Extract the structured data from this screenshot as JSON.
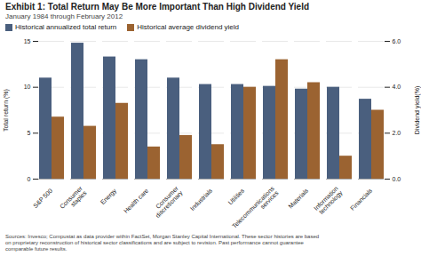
{
  "chart_data": {
    "type": "bar",
    "title": "Exhibit 1: Total Return May Be More Important Than High Dividend Yield",
    "subtitle": "January 1984 through February 2012",
    "categories": [
      "S&P 500",
      "Consumer\nstaples",
      "Energy",
      "Health care",
      "Consumer\ndiscretionary",
      "Industrials",
      "Utilities",
      "Telecommunications\nservices",
      "Materials",
      "Information\ntechnology",
      "Financials"
    ],
    "series": [
      {
        "name": "Historical annualized total return",
        "color": "#4a5f7e",
        "values": [
          11.0,
          14.8,
          13.3,
          13.0,
          11.0,
          10.3,
          10.3,
          10.1,
          9.8,
          10.0,
          8.7
        ]
      },
      {
        "name": "Historical average dividend yield",
        "color": "#9b6331",
        "values": [
          2.7,
          2.3,
          3.3,
          1.4,
          1.9,
          1.5,
          4.0,
          5.2,
          4.2,
          1.0,
          3.0
        ],
        "axis": "y2"
      }
    ],
    "ylabel": "Total return (%)",
    "y2label": "Dividend yield(%)",
    "ylim": [
      0,
      15
    ],
    "yticks": [
      0,
      5,
      10,
      15
    ],
    "y2lim": [
      0,
      6
    ],
    "y2ticks": [
      0,
      2,
      4,
      6
    ],
    "grid": true,
    "legend": "upper left",
    "footnote": "Sources: Invesco; Compustat as data provider within FactSet, Morgan Stanley Capital International. These sector histories are based\non proprietary reconstruction of historical sector classifications and are subject to revision. Past performance cannot guarantee\ncomparable future results."
  }
}
